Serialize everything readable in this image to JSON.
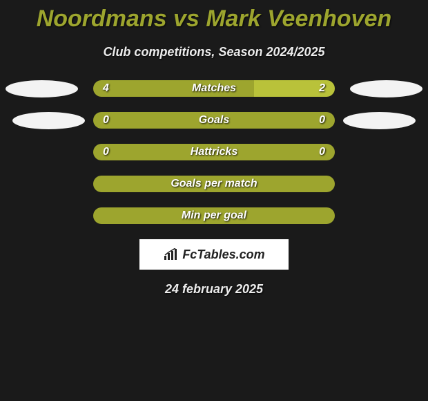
{
  "title": "Noordmans vs Mark Veenhoven",
  "subtitle": "Club competitions, Season 2024/2025",
  "date": "24 february 2025",
  "badge_text": "FcTables.com",
  "colors": {
    "accent_olive": "#9da52e",
    "accent_bright": "#b9c23a",
    "right_fill": "#8f9336",
    "ellipse": "#f3f3f3",
    "background": "#1a1a1a"
  },
  "rows": [
    {
      "label": "Matches",
      "left_value": "4",
      "right_value": "2",
      "left_pct": 66.7,
      "right_pct": 33.3,
      "left_color": "#9da52e",
      "right_color": "#b9c23a",
      "show_ellipses": true,
      "ellipse_class": ""
    },
    {
      "label": "Goals",
      "left_value": "0",
      "right_value": "0",
      "left_pct": 50,
      "right_pct": 50,
      "left_color": "#9da52e",
      "right_color": "#9da52e",
      "show_ellipses": true,
      "ellipse_class": "r2"
    },
    {
      "label": "Hattricks",
      "left_value": "0",
      "right_value": "0",
      "left_pct": 50,
      "right_pct": 50,
      "left_color": "#9da52e",
      "right_color": "#9da52e",
      "show_ellipses": false,
      "ellipse_class": ""
    },
    {
      "label": "Goals per match",
      "left_value": "",
      "right_value": "",
      "left_pct": 100,
      "right_pct": 0,
      "left_color": "#9da52e",
      "right_color": "#9da52e",
      "show_ellipses": false,
      "ellipse_class": ""
    },
    {
      "label": "Min per goal",
      "left_value": "",
      "right_value": "",
      "left_pct": 100,
      "right_pct": 0,
      "left_color": "#9da52e",
      "right_color": "#9da52e",
      "show_ellipses": false,
      "ellipse_class": ""
    }
  ]
}
